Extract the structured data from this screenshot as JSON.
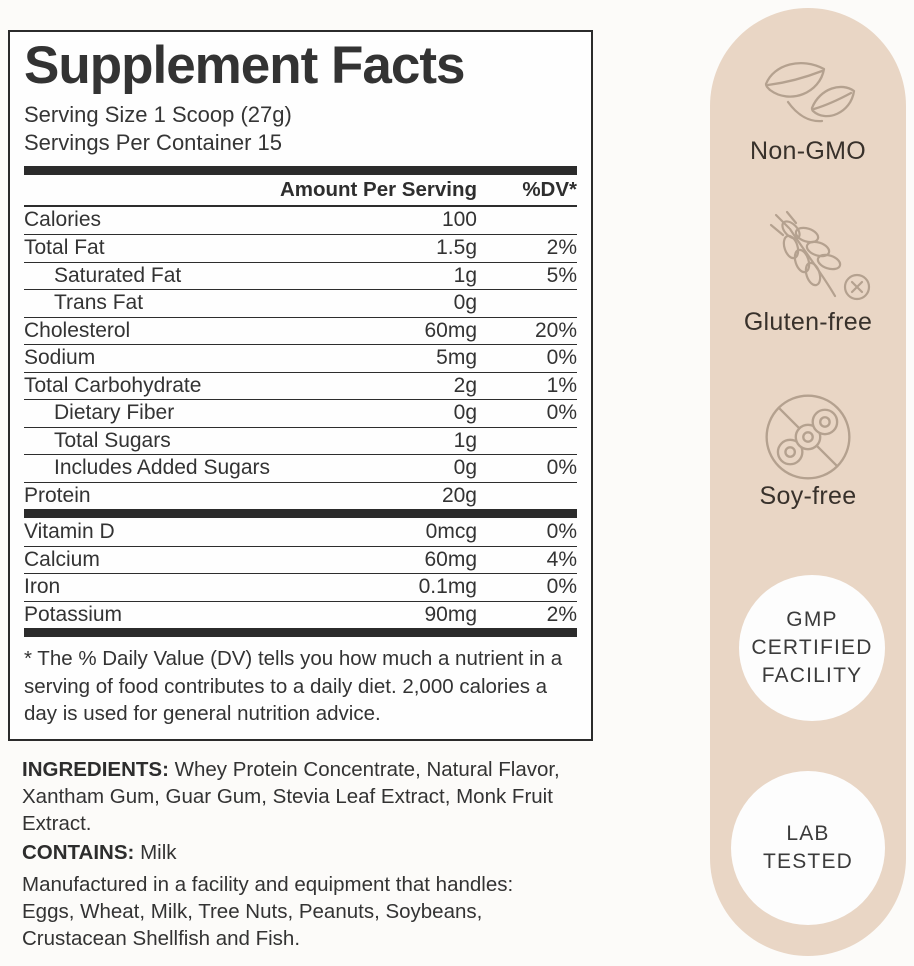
{
  "panel": {
    "title": "Supplement Facts",
    "serving_size": "Serving Size 1 Scoop (27g)",
    "servings_per_container": "Servings Per Container 15",
    "col_amount": "Amount Per Serving",
    "col_dv": "%DV*",
    "rows": [
      {
        "name": "Calories",
        "amount": "100",
        "dv": "",
        "indent": false
      },
      {
        "name": "Total Fat",
        "amount": "1.5g",
        "dv": "2%",
        "indent": false
      },
      {
        "name": "Saturated Fat",
        "amount": "1g",
        "dv": "5%",
        "indent": true
      },
      {
        "name": "Trans Fat",
        "amount": "0g",
        "dv": "",
        "indent": true
      },
      {
        "name": "Cholesterol",
        "amount": "60mg",
        "dv": "20%",
        "indent": false
      },
      {
        "name": "Sodium",
        "amount": "5mg",
        "dv": "0%",
        "indent": false
      },
      {
        "name": "Total Carbohydrate",
        "amount": "2g",
        "dv": "1%",
        "indent": false
      },
      {
        "name": "Dietary Fiber",
        "amount": "0g",
        "dv": "0%",
        "indent": true
      },
      {
        "name": "Total Sugars",
        "amount": "1g",
        "dv": "",
        "indent": true
      },
      {
        "name": "Includes Added Sugars",
        "amount": "0g",
        "dv": "0%",
        "indent": true
      },
      {
        "name": "Protein",
        "amount": "20g",
        "dv": "",
        "indent": false
      }
    ],
    "vitamin_rows": [
      {
        "name": "Vitamin D",
        "amount": "0mcg",
        "dv": "0%",
        "indent": false
      },
      {
        "name": "Calcium",
        "amount": "60mg",
        "dv": "4%",
        "indent": false
      },
      {
        "name": "Iron",
        "amount": "0.1mg",
        "dv": "0%",
        "indent": false
      },
      {
        "name": "Potassium",
        "amount": "90mg",
        "dv": "2%",
        "indent": false
      }
    ],
    "footnote": "* The % Daily Value (DV) tells you how much a nutrient in a serving of food contributes to a daily diet. 2,000 calories a day is used for general nutrition advice."
  },
  "ingredients": {
    "label": "INGREDIENTS:",
    "text": "Whey Protein Concentrate, Natural Flavor, Xantham Gum, Guar Gum, Stevia Leaf Extract, Monk Fruit Extract.",
    "contains_label": "CONTAINS:",
    "contains_text": "Milk",
    "allergen_text": "Manufactured in a facility and equipment that handles: Eggs, Wheat, Milk, Tree Nuts, Peanuts, Soybeans, Crustacean Shellfish and Fish."
  },
  "sidebar": {
    "badges": [
      {
        "label": "Non-GMO",
        "icon": "leaves-icon"
      },
      {
        "label": "Gluten-free",
        "icon": "wheat-crossed-icon"
      },
      {
        "label": "Soy-free",
        "icon": "soybean-crossed-icon"
      }
    ],
    "seals": [
      {
        "lines": [
          "GMP",
          "CERTIFIED",
          "FACILITY"
        ]
      },
      {
        "lines": [
          "LAB",
          "TESTED"
        ]
      }
    ],
    "colors": {
      "background": "#e9d6c5",
      "icon_stroke": "#b4a18f",
      "text": "#38312b",
      "seal_background": "#fdfdfd"
    }
  }
}
